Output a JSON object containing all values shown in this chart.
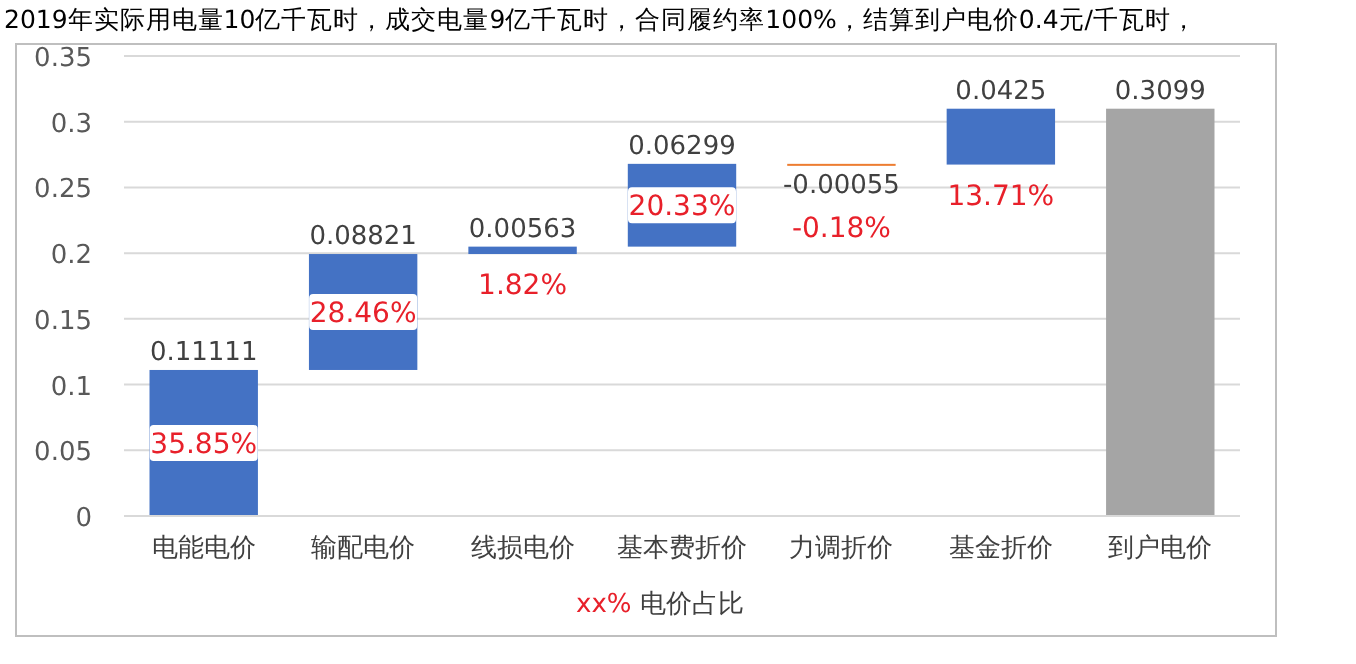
{
  "chart_data": {
    "type": "bar",
    "title": "2019年实际用电量10亿千瓦时，成交电量9亿千瓦时，合同履约率100%，结算到户电价0.4元/千瓦时，",
    "categories": [
      "电能电价",
      "输配电价",
      "线损电价",
      "基本费折价",
      "力调折价",
      "基金折价",
      "到户电价"
    ],
    "values": [
      0.11111,
      0.08821,
      0.00563,
      0.06299,
      -0.00055,
      0.0425,
      0.3099
    ],
    "base": [
      0,
      0.11111,
      0.19932,
      0.20495,
      0.26794,
      0.26739,
      0
    ],
    "colors": [
      "#4472c4",
      "#4472c4",
      "#4472c4",
      "#4472c4",
      "#ed7d31",
      "#4472c4",
      "#a5a5a5"
    ],
    "data_labels": true,
    "annotations": [
      "35.85%",
      "28.46%",
      "1.82%",
      "20.33%",
      "-0.18%",
      "13.71%",
      "xx%",
      "电价占比"
    ],
    "ylim": [
      0,
      0.35
    ],
    "yticks": [
      0,
      0.05,
      0.1,
      0.15,
      0.2,
      0.25,
      0.3,
      0.35
    ],
    "grid": "y"
  }
}
